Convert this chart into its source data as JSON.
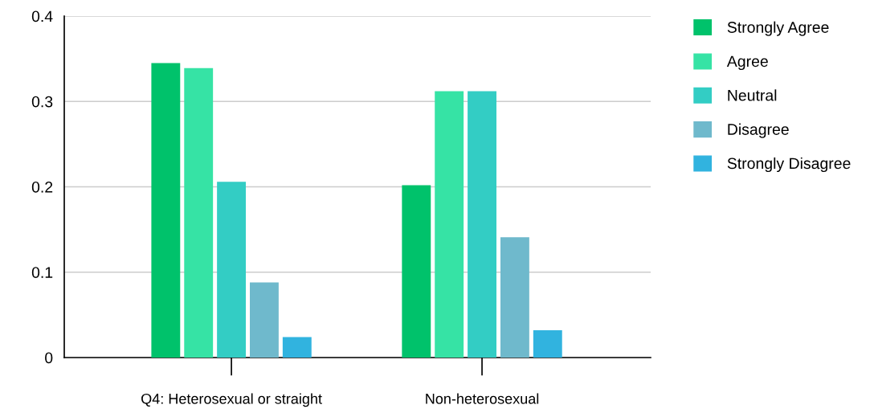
{
  "chart_data": {
    "type": "bar",
    "categories": [
      "Q4: Heterosexual or straight",
      "Non-heterosexual"
    ],
    "series": [
      {
        "name": "Strongly Agree",
        "color": "#00c26b",
        "values": [
          0.345,
          0.202
        ]
      },
      {
        "name": "Agree",
        "color": "#36e3a5",
        "values": [
          0.339,
          0.312
        ]
      },
      {
        "name": "Neutral",
        "color": "#33cdc4",
        "values": [
          0.206,
          0.312
        ]
      },
      {
        "name": "Disagree",
        "color": "#6fb9cc",
        "values": [
          0.088,
          0.141
        ]
      },
      {
        "name": "Strongly Disagree",
        "color": "#31b3df",
        "values": [
          0.024,
          0.032
        ]
      }
    ],
    "ylim": [
      0,
      0.4
    ],
    "yticks": [
      0,
      0.1,
      0.2,
      0.3,
      0.4
    ],
    "grid": "y",
    "legend": "top right"
  }
}
